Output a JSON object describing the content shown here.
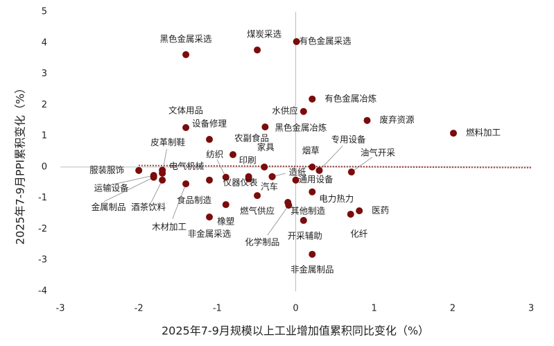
{
  "chart_data": {
    "type": "scatter",
    "x_label": "2025年7-9月规模以上工业增加值累积同比变化（%）",
    "y_label": "2025年7-9月PPI累积变化（%）",
    "xlim": [
      -3,
      3
    ],
    "xticks": [
      -3,
      -2,
      -1,
      0,
      1,
      2,
      3
    ],
    "ylim": [
      -4,
      5
    ],
    "yticks": [
      -4,
      -3,
      -2,
      -1,
      0,
      1,
      2,
      3,
      4,
      5
    ],
    "color": "#7a0c0c",
    "trendline": {
      "x": [
        -2,
        3
      ],
      "y": [
        0.05,
        -0.02
      ],
      "color": "#8b1a1a"
    },
    "points": [
      {
        "label": "黑色金属采选",
        "x": -1.4,
        "y": 3.62
      },
      {
        "label": "煤炭采选",
        "x": -0.49,
        "y": 3.77
      },
      {
        "label": "有色金属采选",
        "x": 0.01,
        "y": 4.04
      },
      {
        "label": "有色金属冶炼",
        "x": 0.21,
        "y": 2.19
      },
      {
        "label": "水供应",
        "x": 0.1,
        "y": 1.79
      },
      {
        "label": "废弃资源",
        "x": 0.91,
        "y": 1.5
      },
      {
        "label": "燃料加工",
        "x": 2.01,
        "y": 1.09
      },
      {
        "label": "文体用品",
        "x": -1.4,
        "y": 1.27
      },
      {
        "label": "设备修理",
        "x": -1.1,
        "y": 0.89
      },
      {
        "label": "黑色金属冶炼",
        "x": -0.39,
        "y": 1.29
      },
      {
        "label": "农副食品",
        "x": -0.8,
        "y": 0.4
      },
      {
        "label": "皮革制鞋",
        "x": -1.7,
        "y": -0.2
      },
      {
        "label": "纺织",
        "x": -0.89,
        "y": -0.33
      },
      {
        "label": "家具",
        "x": -0.4,
        "y": 0.0
      },
      {
        "label": "印刷",
        "x": -0.6,
        "y": -0.31
      },
      {
        "label": "烟草",
        "x": 0.21,
        "y": 0.0
      },
      {
        "label": "造纸",
        "x": -0.3,
        "y": -0.31
      },
      {
        "label": "专用设备",
        "x": 0.3,
        "y": -0.11
      },
      {
        "label": "油气开采",
        "x": 0.71,
        "y": -0.16
      },
      {
        "label": "通用设备",
        "x": 0.0,
        "y": -0.42
      },
      {
        "label": "汽车",
        "x": -0.3,
        "y": -0.31
      },
      {
        "label": "电力热力",
        "x": 0.21,
        "y": -0.8
      },
      {
        "label": "医药",
        "x": 0.81,
        "y": -1.41
      },
      {
        "label": "化纤",
        "x": 0.7,
        "y": -1.52
      },
      {
        "label": "其他制造",
        "x": -0.1,
        "y": -1.14
      },
      {
        "label": "化学制品",
        "x": -0.09,
        "y": -1.23
      },
      {
        "label": "开采辅助",
        "x": 0.1,
        "y": -1.72
      },
      {
        "label": "非金属制品",
        "x": 0.21,
        "y": -2.81
      },
      {
        "label": "燃气供应",
        "x": -0.49,
        "y": -0.92
      },
      {
        "label": "仪器仪表",
        "x": -0.6,
        "y": -0.38
      },
      {
        "label": "橡塑",
        "x": -0.89,
        "y": -1.21
      },
      {
        "label": "非金属采选",
        "x": -1.1,
        "y": -1.61
      },
      {
        "label": "食品制造",
        "x": -1.1,
        "y": -0.42
      },
      {
        "label": "木材加工",
        "x": -1.4,
        "y": -0.54
      },
      {
        "label": "电气机械",
        "x": -1.7,
        "y": -0.1
      },
      {
        "label": "服装服饰",
        "x": -2.0,
        "y": -0.11
      },
      {
        "label": "运输设备",
        "x": -1.81,
        "y": -0.27
      },
      {
        "label": "金属制品",
        "x": -1.81,
        "y": -0.33
      },
      {
        "label": "酒茶饮料",
        "x": -1.7,
        "y": -0.42
      }
    ]
  }
}
